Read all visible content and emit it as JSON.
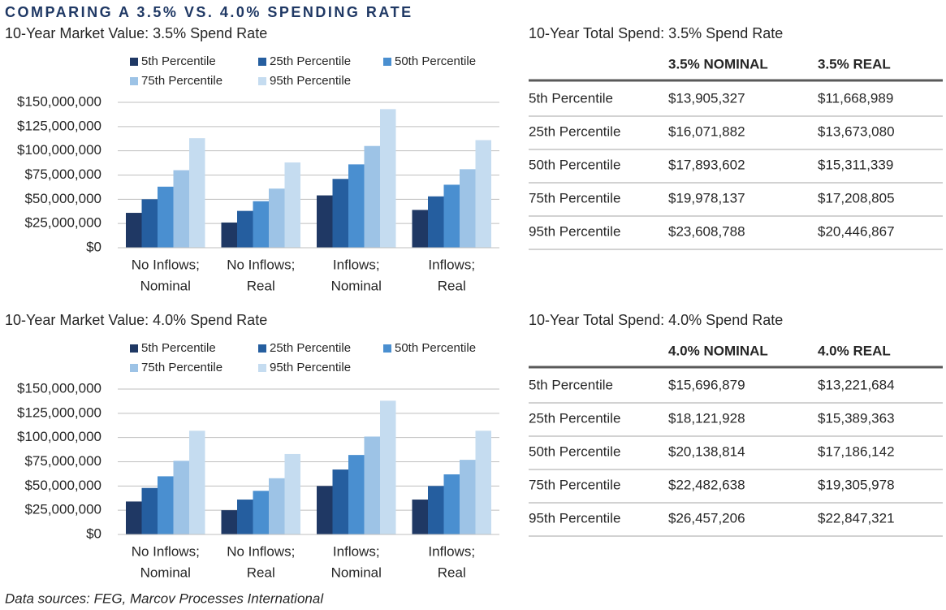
{
  "title": "COMPARING A 3.5% VS. 4.0% SPENDING RATE",
  "chart_data": [
    {
      "type": "bar",
      "title": "10-Year Market Value: 3.5% Spend Rate",
      "categories": [
        [
          "No Inflows;",
          "Nominal"
        ],
        [
          "No Inflows;",
          "Real"
        ],
        [
          "Inflows;",
          "Nominal"
        ],
        [
          "Inflows;",
          "Real"
        ]
      ],
      "series": [
        {
          "name": "5th Percentile",
          "color": "#1f3864",
          "values": [
            36000000,
            26000000,
            54000000,
            39000000
          ]
        },
        {
          "name": "25th Percentile",
          "color": "#255e9f",
          "values": [
            50000000,
            38000000,
            71000000,
            53000000
          ]
        },
        {
          "name": "50th Percentile",
          "color": "#4a8fd0",
          "values": [
            63000000,
            48000000,
            86000000,
            65000000
          ]
        },
        {
          "name": "75th Percentile",
          "color": "#9dc3e6",
          "values": [
            80000000,
            61000000,
            105000000,
            81000000
          ]
        },
        {
          "name": "95th Percentile",
          "color": "#c5dcf0",
          "values": [
            113000000,
            88000000,
            143000000,
            111000000
          ]
        }
      ],
      "ylim": [
        0,
        150000000
      ],
      "yticks": [
        {
          "value": 0,
          "label": "$0"
        },
        {
          "value": 25000000,
          "label": "$25,000,000"
        },
        {
          "value": 50000000,
          "label": "$50,000,000"
        },
        {
          "value": 75000000,
          "label": "$75,000,000"
        },
        {
          "value": 100000000,
          "label": "$100,000,000"
        },
        {
          "value": 125000000,
          "label": "$125,000,000"
        },
        {
          "value": 150000000,
          "label": "$150,000,000"
        }
      ],
      "grid": true,
      "legend": "top"
    },
    {
      "type": "bar",
      "title": "10-Year Market Value: 4.0% Spend Rate",
      "categories": [
        [
          "No Inflows;",
          "Nominal"
        ],
        [
          "No Inflows;",
          "Real"
        ],
        [
          "Inflows;",
          "Nominal"
        ],
        [
          "Inflows;",
          "Real"
        ]
      ],
      "series": [
        {
          "name": "5th Percentile",
          "color": "#1f3864",
          "values": [
            34000000,
            25000000,
            50000000,
            36000000
          ]
        },
        {
          "name": "25th Percentile",
          "color": "#255e9f",
          "values": [
            48000000,
            36000000,
            67000000,
            50000000
          ]
        },
        {
          "name": "50th Percentile",
          "color": "#4a8fd0",
          "values": [
            60000000,
            45000000,
            82000000,
            62000000
          ]
        },
        {
          "name": "75th Percentile",
          "color": "#9dc3e6",
          "values": [
            76000000,
            58000000,
            101000000,
            77000000
          ]
        },
        {
          "name": "95th Percentile",
          "color": "#c5dcf0",
          "values": [
            107000000,
            83000000,
            138000000,
            107000000
          ]
        }
      ],
      "ylim": [
        0,
        150000000
      ],
      "yticks": [
        {
          "value": 0,
          "label": "$0"
        },
        {
          "value": 25000000,
          "label": "$25,000,000"
        },
        {
          "value": 50000000,
          "label": "$50,000,000"
        },
        {
          "value": 75000000,
          "label": "$75,000,000"
        },
        {
          "value": 100000000,
          "label": "$100,000,000"
        },
        {
          "value": 125000000,
          "label": "$125,000,000"
        },
        {
          "value": 150000000,
          "label": "$150,000,000"
        }
      ],
      "grid": true,
      "legend": "top"
    }
  ],
  "tables": [
    {
      "title": "10-Year Total Spend: 3.5% Spend Rate",
      "columns": [
        "3.5% NOMINAL",
        "3.5% REAL"
      ],
      "rows": [
        {
          "label": "5th Percentile",
          "values": [
            "$13,905,327",
            "$11,668,989"
          ]
        },
        {
          "label": "25th Percentile",
          "values": [
            "$16,071,882",
            "$13,673,080"
          ]
        },
        {
          "label": "50th Percentile",
          "values": [
            "$17,893,602",
            "$15,311,339"
          ]
        },
        {
          "label": "75th Percentile",
          "values": [
            "$19,978,137",
            "$17,208,805"
          ]
        },
        {
          "label": "95th Percentile",
          "values": [
            "$23,608,788",
            "$20,446,867"
          ]
        }
      ]
    },
    {
      "title": "10-Year Total Spend: 4.0% Spend Rate",
      "columns": [
        "4.0% NOMINAL",
        "4.0% REAL"
      ],
      "rows": [
        {
          "label": "5th Percentile",
          "values": [
            "$15,696,879",
            "$13,221,684"
          ]
        },
        {
          "label": "25th Percentile",
          "values": [
            "$18,121,928",
            "$15,389,363"
          ]
        },
        {
          "label": "50th Percentile",
          "values": [
            "$20,138,814",
            "$17,186,142"
          ]
        },
        {
          "label": "75th Percentile",
          "values": [
            "$22,482,638",
            "$19,305,978"
          ]
        },
        {
          "label": "95th Percentile",
          "values": [
            "$26,457,206",
            "$22,847,321"
          ]
        }
      ]
    }
  ],
  "source": "Data sources: FEG, Marcov Processes International"
}
